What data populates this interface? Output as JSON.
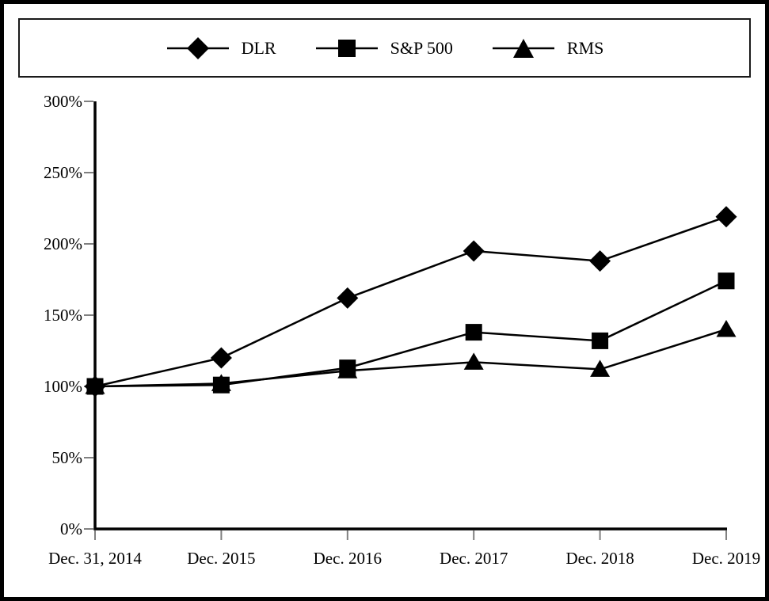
{
  "figure": {
    "kind": "stock-performance-comparison-line-chart",
    "background_color": "#ffffff",
    "frame_color": "#000000"
  },
  "legend": {
    "position": "top",
    "items": [
      {
        "label": "DLR",
        "marker": "diamond"
      },
      {
        "label": "S&P 500",
        "marker": "square"
      },
      {
        "label": "RMS",
        "marker": "triangle"
      }
    ]
  },
  "chart_data": {
    "type": "line",
    "title": "",
    "xlabel": "",
    "ylabel": "",
    "categories": [
      "Dec. 31, 2014",
      "Dec. 2015",
      "Dec. 2016",
      "Dec. 2017",
      "Dec. 2018",
      "Dec. 2019"
    ],
    "y_tick_labels": [
      "0%",
      "50%",
      "100%",
      "150%",
      "200%",
      "250%",
      "300%"
    ],
    "y_tick_values": [
      0,
      50,
      100,
      150,
      200,
      250,
      300
    ],
    "ylim": [
      0,
      300
    ],
    "grid": false,
    "legend_position": "top",
    "series": [
      {
        "name": "DLR",
        "marker": "diamond",
        "values": [
          100,
          120,
          162,
          195,
          188,
          219
        ]
      },
      {
        "name": "S&P 500",
        "marker": "square",
        "values": [
          100,
          101,
          113,
          138,
          132,
          174
        ]
      },
      {
        "name": "RMS",
        "marker": "triangle",
        "values": [
          100,
          102,
          111,
          117,
          112,
          140
        ]
      }
    ],
    "line_color": "#000000",
    "marker_color": "#000000",
    "tick_color": "#808080",
    "text_color": "#000000"
  }
}
